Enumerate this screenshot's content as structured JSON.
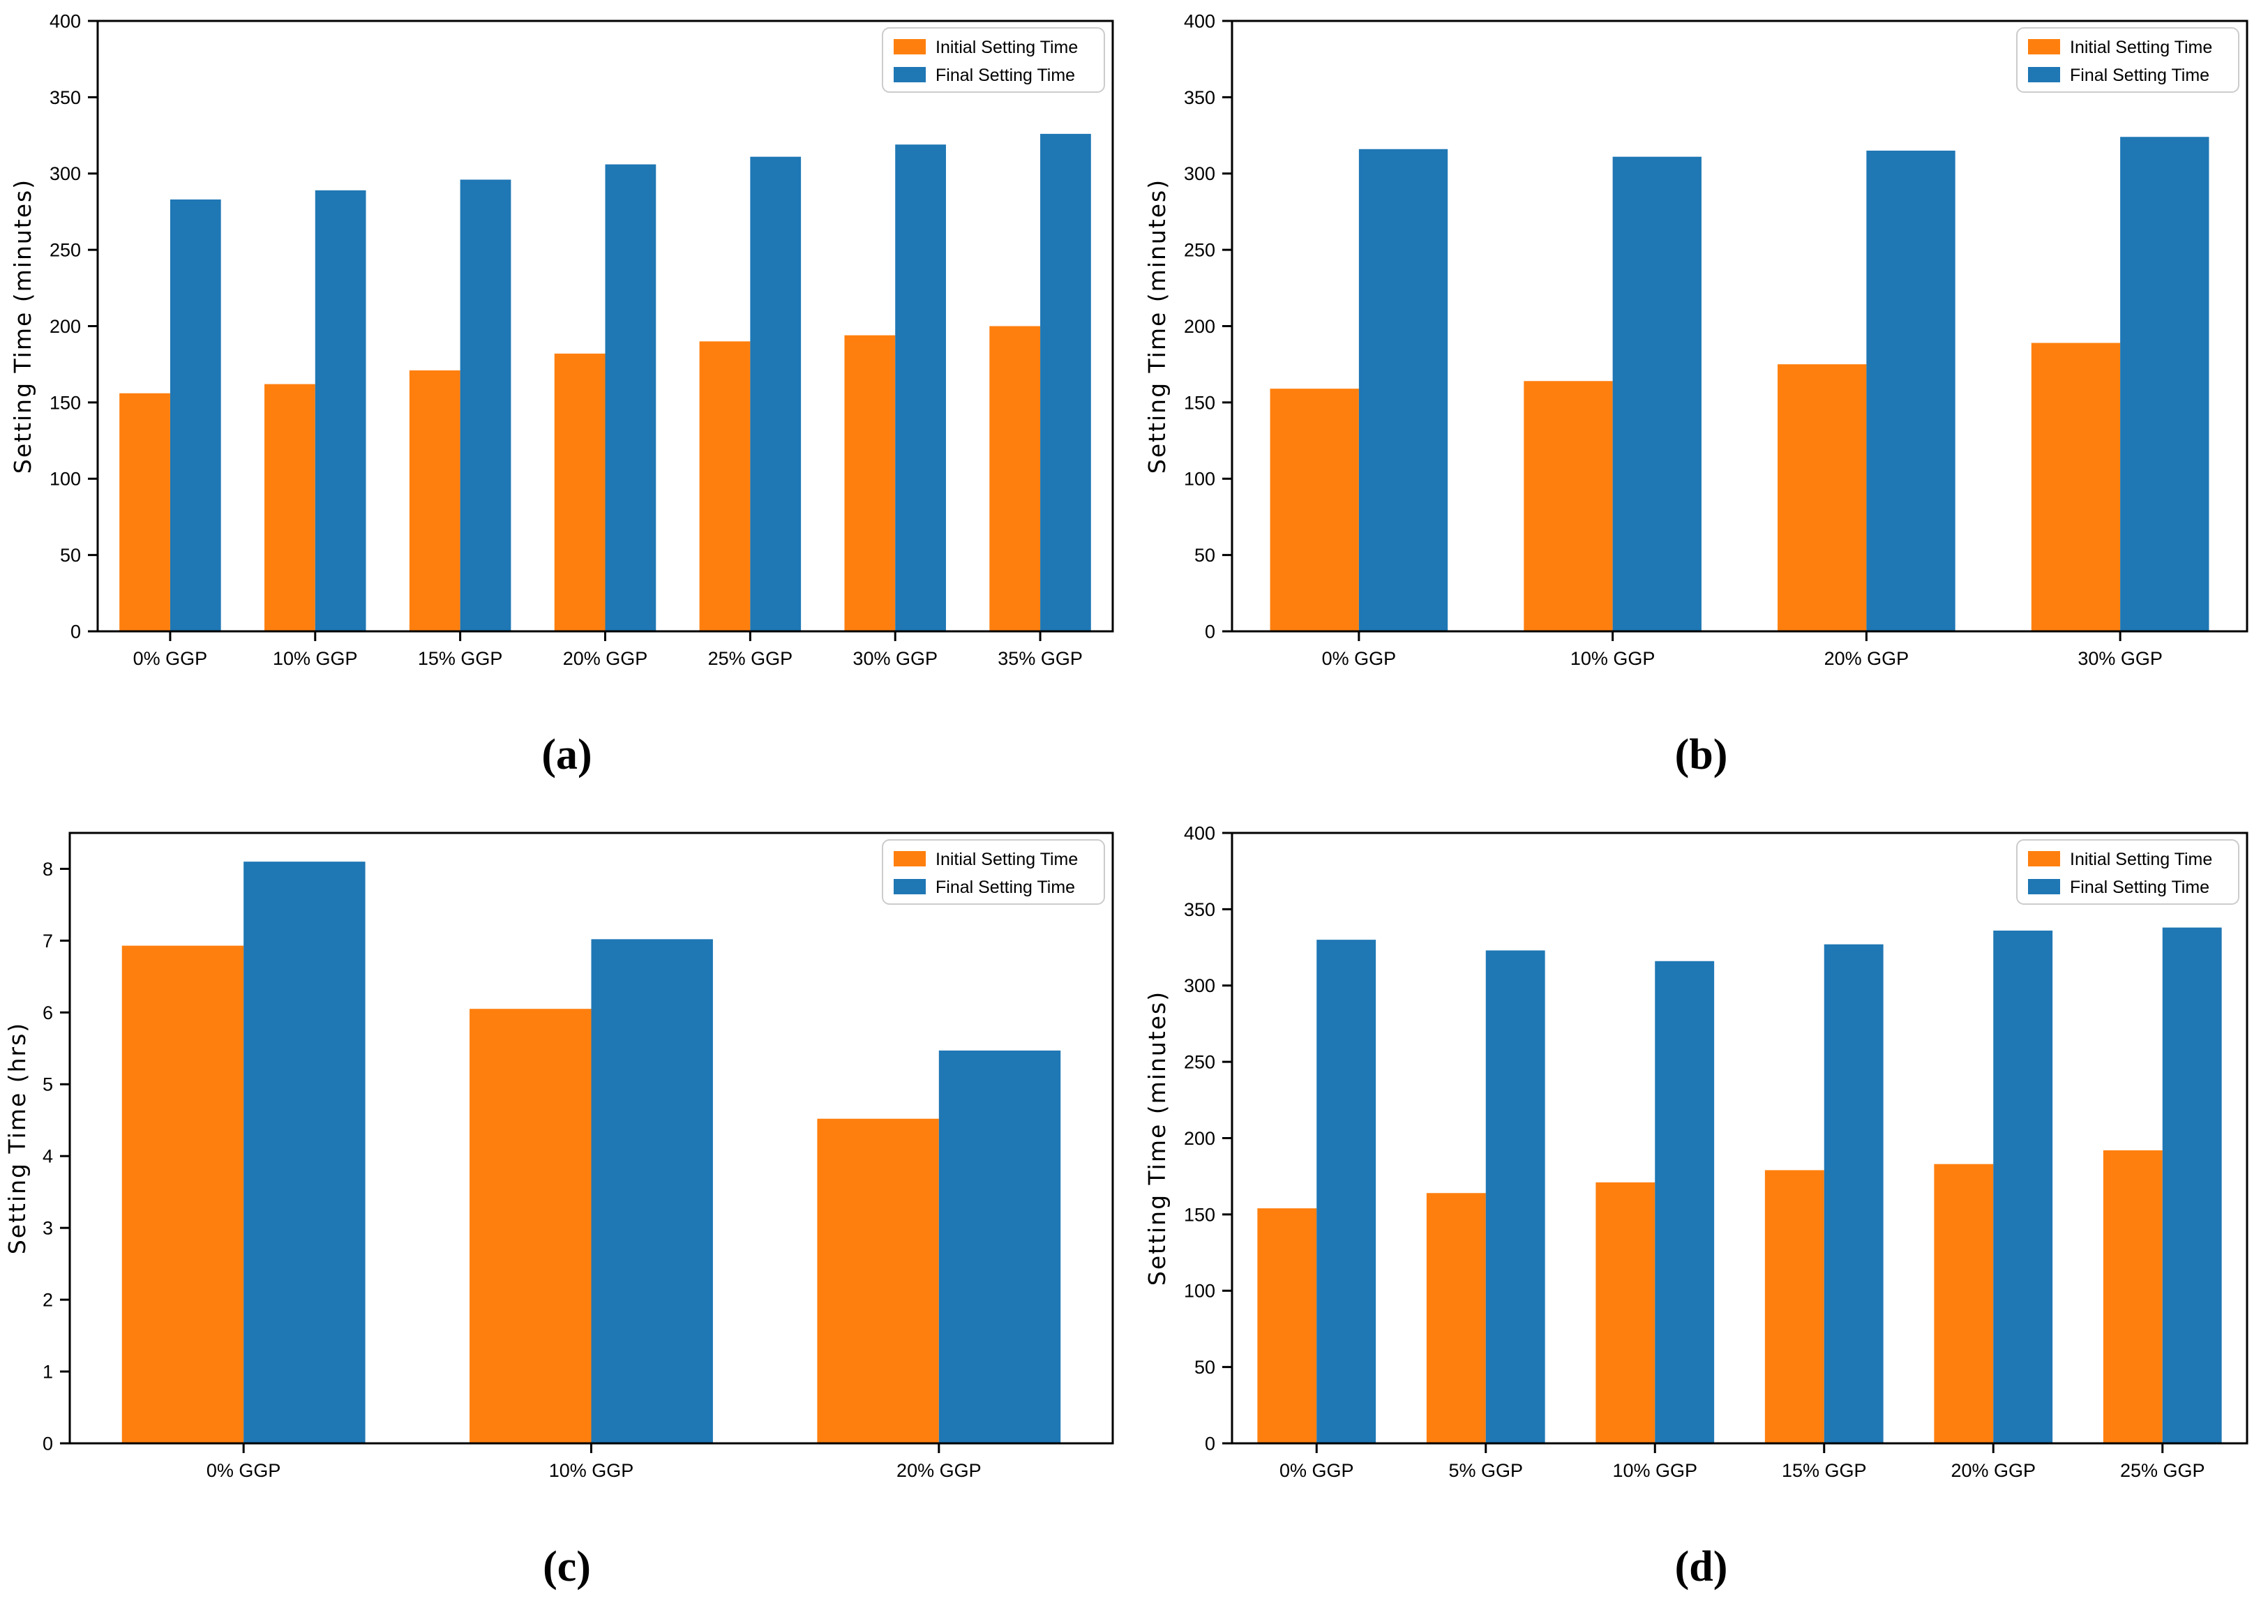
{
  "colors": {
    "initial": "#ff7f0e",
    "final": "#1f77b4",
    "axis": "#000000",
    "legend_border": "#cccccc",
    "background": "#ffffff"
  },
  "legend": {
    "entries": [
      "Initial Setting Time",
      "Final Setting Time"
    ],
    "position": "upper right"
  },
  "chart_data": [
    {
      "id": "a",
      "caption": "(a)",
      "type": "bar",
      "title": "",
      "xlabel": "",
      "ylabel": "Setting Time (minutes)",
      "ylim": [
        0,
        400
      ],
      "ytick_step": 50,
      "grid": false,
      "legend_position": "upper right",
      "categories": [
        "0% GGP",
        "10% GGP",
        "15% GGP",
        "20% GGP",
        "25% GGP",
        "30% GGP",
        "35% GGP"
      ],
      "series": [
        {
          "name": "Initial Setting Time",
          "color": "#ff7f0e",
          "values": [
            156,
            162,
            171,
            182,
            190,
            194,
            200
          ]
        },
        {
          "name": "Final Setting Time",
          "color": "#1f77b4",
          "values": [
            283,
            289,
            296,
            306,
            311,
            319,
            326
          ]
        }
      ]
    },
    {
      "id": "b",
      "caption": "(b)",
      "type": "bar",
      "title": "",
      "xlabel": "",
      "ylabel": "Setting Time (minutes)",
      "ylim": [
        0,
        400
      ],
      "ytick_step": 50,
      "grid": false,
      "legend_position": "upper right",
      "categories": [
        "0% GGP",
        "10% GGP",
        "20% GGP",
        "30% GGP"
      ],
      "series": [
        {
          "name": "Initial Setting Time",
          "color": "#ff7f0e",
          "values": [
            159,
            164,
            175,
            189
          ]
        },
        {
          "name": "Final Setting Time",
          "color": "#1f77b4",
          "values": [
            316,
            311,
            315,
            324
          ]
        }
      ]
    },
    {
      "id": "c",
      "caption": "(c)",
      "type": "bar",
      "title": "",
      "xlabel": "",
      "ylabel": "Setting Time (hrs)",
      "ylim": [
        0,
        8.5
      ],
      "ytick_step": 1,
      "grid": false,
      "legend_position": "upper right",
      "categories": [
        "0% GGP",
        "10% GGP",
        "20% GGP"
      ],
      "series": [
        {
          "name": "Initial Setting Time",
          "color": "#ff7f0e",
          "values": [
            6.93,
            6.05,
            4.52
          ]
        },
        {
          "name": "Final Setting Time",
          "color": "#1f77b4",
          "values": [
            8.1,
            7.02,
            5.47
          ]
        }
      ]
    },
    {
      "id": "d",
      "caption": "(d)",
      "type": "bar",
      "title": "",
      "xlabel": "",
      "ylabel": "Setting Time (minutes)",
      "ylim": [
        0,
        400
      ],
      "ytick_step": 50,
      "grid": false,
      "legend_position": "upper right",
      "categories": [
        "0% GGP",
        "5% GGP",
        "10% GGP",
        "15% GGP",
        "20% GGP",
        "25% GGP"
      ],
      "series": [
        {
          "name": "Initial Setting Time",
          "color": "#ff7f0e",
          "values": [
            154,
            164,
            171,
            179,
            183,
            192
          ]
        },
        {
          "name": "Final Setting Time",
          "color": "#1f77b4",
          "values": [
            330,
            323,
            316,
            327,
            336,
            338
          ]
        }
      ]
    }
  ]
}
